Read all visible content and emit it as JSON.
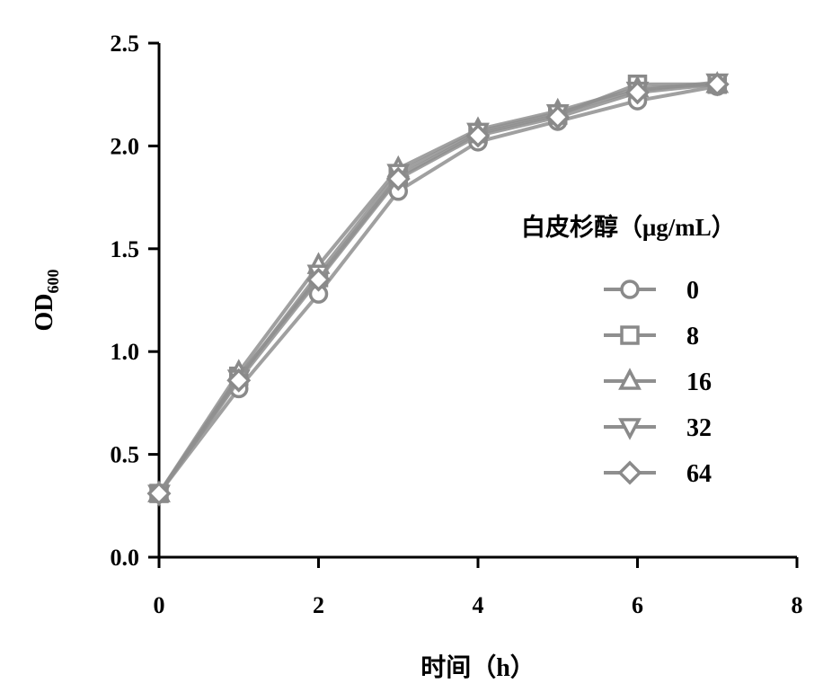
{
  "chart_data": {
    "type": "line",
    "xlabel": "时间（h）",
    "ylabel": "OD",
    "ylabel_subscript": "600",
    "xlim": [
      0,
      8
    ],
    "ylim": [
      0,
      2.5
    ],
    "xticks": [
      "0",
      "2",
      "4",
      "6",
      "8"
    ],
    "yticks": [
      "0.0",
      "0.5",
      "1.0",
      "1.5",
      "2.0",
      "2.5"
    ],
    "grid": false,
    "legend": {
      "title": "白皮杉醇（μg/mL）",
      "placement": "right"
    },
    "x": [
      0,
      1,
      2,
      3,
      4,
      5,
      6,
      7
    ],
    "series": [
      {
        "name": "0",
        "marker": "circle",
        "values": [
          0.31,
          0.82,
          1.28,
          1.78,
          2.02,
          2.12,
          2.22,
          2.29
        ]
      },
      {
        "name": "8",
        "marker": "square",
        "values": [
          0.31,
          0.88,
          1.36,
          1.85,
          2.06,
          2.15,
          2.3,
          2.3
        ]
      },
      {
        "name": "16",
        "marker": "triangle-up",
        "values": [
          0.31,
          0.9,
          1.42,
          1.89,
          2.08,
          2.17,
          2.28,
          2.3
        ]
      },
      {
        "name": "32",
        "marker": "triangle-down",
        "values": [
          0.31,
          0.87,
          1.38,
          1.87,
          2.07,
          2.16,
          2.27,
          2.31
        ]
      },
      {
        "name": "64",
        "marker": "diamond",
        "values": [
          0.31,
          0.86,
          1.35,
          1.84,
          2.05,
          2.14,
          2.26,
          2.3
        ]
      }
    ],
    "colors": {
      "line": "#8f8f8f",
      "marker_stroke": "#8a8a8a",
      "marker_fill": "#ffffff",
      "axis": "#000000"
    }
  }
}
